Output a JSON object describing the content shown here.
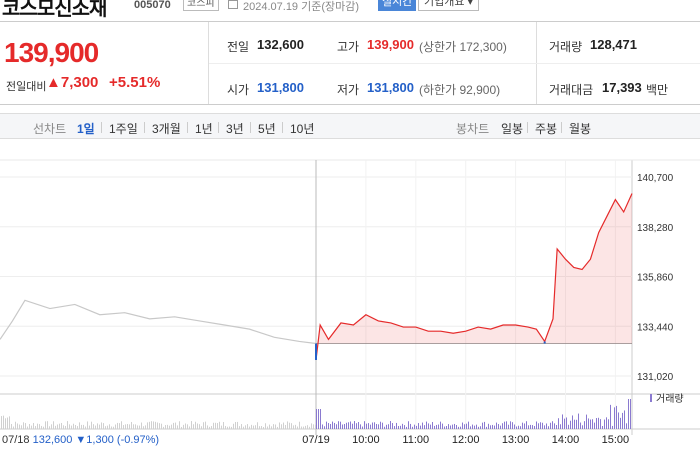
{
  "header": {
    "name": "코스모신소재",
    "code": "005070",
    "market": "코스피",
    "date": "2024.07.19  기준(장마감)",
    "realtime": "실시간",
    "company_info": "기업개요 ▾"
  },
  "summary": {
    "price": "139,900",
    "prev_day_label": "전일대비",
    "change": "▲7,300",
    "change_pct": "+5.51%",
    "prev_close_label": "전일",
    "prev_close": "132,600",
    "open_label": "시가",
    "open": "131,800",
    "high_label": "고가",
    "high": "139,900",
    "upper_limit": "(상한가 172,300)",
    "low_label": "저가",
    "low": "131,800",
    "lower_limit": "(하한가 92,900)",
    "volume_label": "거래량",
    "volume": "128,471",
    "amount_label": "거래대금",
    "amount": "17,393",
    "amount_unit": "백만"
  },
  "period_bar": {
    "line_chart": "선차트",
    "periods": [
      "1일",
      "1주일",
      "3개월",
      "1년",
      "3년",
      "5년",
      "10년"
    ],
    "active_period": "1일",
    "candle_chart": "봉차트",
    "candles": [
      "일봉",
      "주봉",
      "월봉"
    ]
  },
  "colors": {
    "up": "#e52a2a",
    "down": "#2460c8",
    "accent": "#4a86d8",
    "volume": "#8a7ad0",
    "prev_day_line": "#c8c8c8"
  },
  "chart_data": {
    "type": "line",
    "y_ticks": [
      "140,700",
      "138,280",
      "135,860",
      "133,440",
      "131,020"
    ],
    "ylim": [
      131020,
      140700
    ],
    "x_ticks": [
      "07/19",
      "10:00",
      "11:00",
      "12:00",
      "13:00",
      "14:00",
      "15:00"
    ],
    "reference_line": 132600,
    "volume_label": "거래량",
    "footer": {
      "date": "07/18",
      "price": "132,600",
      "change": "▼1,300",
      "change_pct": "(-0.97%)"
    },
    "series": [
      {
        "x": [
          "07/18 09:00",
          "07/18 09:15",
          "07/18 09:30",
          "07/18 10:00",
          "07/18 10:30",
          "07/18 11:00",
          "07/18 11:30",
          "07/18 12:00",
          "07/18 12:30",
          "07/18 13:00",
          "07/18 13:30",
          "07/18 14:00",
          "07/18 14:30",
          "07/18 15:00",
          "07/18 15:20"
        ],
        "values": [
          132800,
          133700,
          134700,
          134300,
          134500,
          134000,
          134100,
          133800,
          133900,
          133700,
          133500,
          133300,
          132900,
          132700,
          132600
        ]
      },
      {
        "x": [
          "09:00",
          "09:05",
          "09:15",
          "09:30",
          "09:45",
          "10:00",
          "10:15",
          "10:30",
          "10:45",
          "11:00",
          "11:15",
          "11:30",
          "11:45",
          "12:00",
          "12:15",
          "12:30",
          "12:45",
          "13:00",
          "13:15",
          "13:25",
          "13:35",
          "13:45",
          "13:50",
          "14:00",
          "14:10",
          "14:20",
          "14:30",
          "14:40",
          "14:50",
          "15:00",
          "15:10",
          "15:20"
        ],
        "values": [
          131800,
          133500,
          132800,
          133600,
          133500,
          134000,
          133700,
          133600,
          133400,
          133400,
          133200,
          133200,
          133100,
          133200,
          133400,
          133300,
          133500,
          133500,
          133400,
          133300,
          132700,
          133800,
          137200,
          136700,
          136300,
          136200,
          136700,
          138000,
          138800,
          139600,
          139000,
          139900
        ]
      }
    ]
  }
}
